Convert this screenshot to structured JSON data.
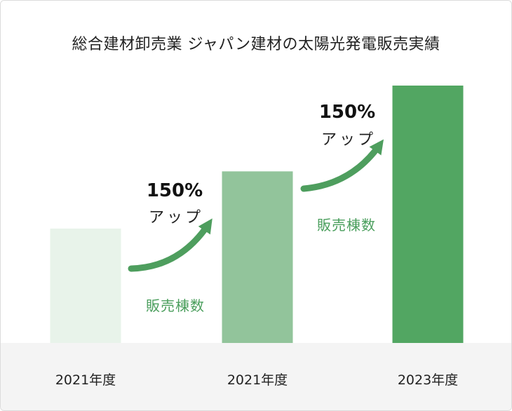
{
  "title": "総合建材卸売業 ジャパン建材の太陽光発電販売実績",
  "chart_data": {
    "type": "bar",
    "categories": [
      "2021年度",
      "2021年度",
      "2023年度"
    ],
    "values": [
      100,
      150,
      225
    ],
    "colors": [
      "#e8f3ea",
      "#92c49b",
      "#52a662"
    ],
    "ylim": [
      0,
      225
    ],
    "xlabel": "",
    "ylabel": "",
    "legend": "none",
    "grid": false
  },
  "annotations": [
    {
      "percent": "150%",
      "label": "アップ",
      "metric": "販売棟数",
      "arrow_color": "#4e9e5e"
    },
    {
      "percent": "150%",
      "label": "アップ",
      "metric": "販売棟数",
      "arrow_color": "#4e9e5e"
    }
  ]
}
